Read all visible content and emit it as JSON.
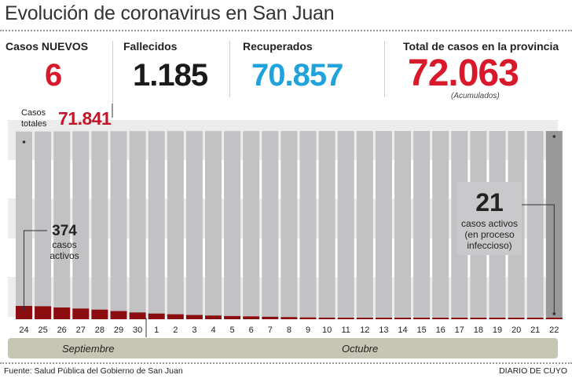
{
  "title": "Evolución de coronavirus en San Juan",
  "stats": {
    "new": {
      "label": "Casos NUEVOS",
      "value": "6",
      "color": "#d8192c"
    },
    "deaths": {
      "label": "Fallecidos",
      "value": "1.185",
      "color": "#1a1a1a"
    },
    "recovered": {
      "label": "Recuperados",
      "value": "70.857",
      "color": "#1ea3dc"
    },
    "total": {
      "label": "Total de casos en la provincia",
      "value": "72.063",
      "note": "(Acumulados)",
      "color": "#d8192c"
    }
  },
  "total_cases_label": "Casos totales",
  "total_cases_value": "71.841",
  "annotations": {
    "start": {
      "value": "374",
      "text": "casos activos"
    },
    "end": {
      "value": "21",
      "text": "casos activos (en proceso infeccioso)"
    }
  },
  "months": [
    "Septiembre",
    "Octubre"
  ],
  "footer": {
    "source": "Fuente: Salud Pública del Gobierno de San Juan",
    "credit": "DIARIO DE CUYO"
  },
  "chart_data": {
    "type": "bar",
    "categories": [
      "24",
      "25",
      "26",
      "27",
      "28",
      "29",
      "30",
      "1",
      "2",
      "3",
      "4",
      "5",
      "6",
      "7",
      "8",
      "9",
      "10",
      "11",
      "12",
      "13",
      "14",
      "15",
      "16",
      "17",
      "18",
      "19",
      "20",
      "21",
      "22"
    ],
    "series": [
      {
        "name": "Casos totales",
        "values": [
          71841,
          71880,
          71915,
          71940,
          71965,
          71985,
          72000,
          72010,
          72018,
          72025,
          72030,
          72035,
          72039,
          72042,
          72045,
          72047,
          72049,
          72051,
          72052,
          72053,
          72054,
          72055,
          72056,
          72057,
          72058,
          72059,
          72060,
          72061,
          72063
        ]
      },
      {
        "name": "casos activos",
        "values": [
          374,
          365,
          330,
          300,
          270,
          230,
          190,
          160,
          140,
          120,
          105,
          90,
          80,
          70,
          60,
          50,
          45,
          42,
          40,
          38,
          36,
          34,
          32,
          30,
          28,
          26,
          24,
          22,
          21
        ]
      }
    ],
    "colors": {
      "total": "#c2c2c4",
      "total_last": "#999999",
      "active": "#8b0d0f",
      "band": "#ececec"
    }
  }
}
